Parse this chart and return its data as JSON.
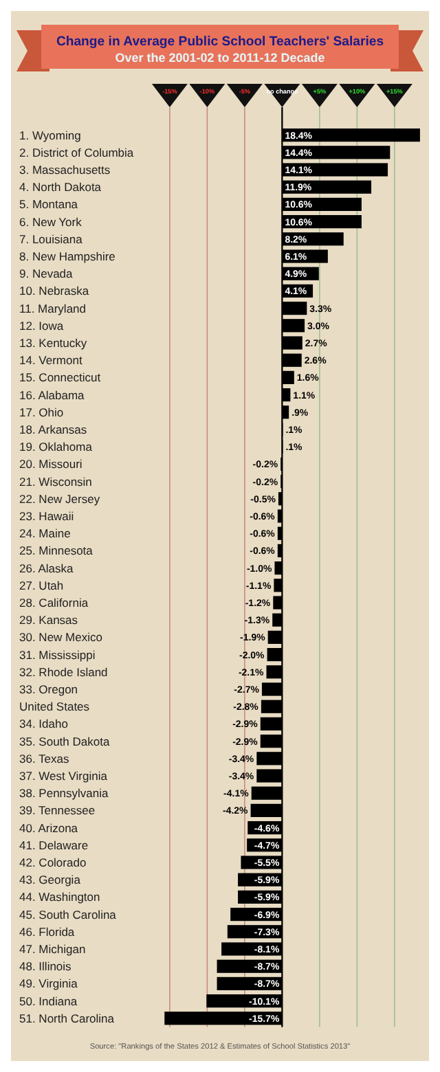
{
  "chart_data": {
    "type": "bar",
    "orientation": "horizontal",
    "title": "Change in Average Public School Teachers' Salaries",
    "subtitle": "Over the 2001-02 to 2011-12 Decade",
    "categories": [
      "1. Wyoming",
      "2. District of Columbia",
      "3. Massachusetts",
      "4. North Dakota",
      "5. Montana",
      "6. New York",
      "7. Louisiana",
      "8. New Hampshire",
      "9. Nevada",
      "10. Nebraska",
      "11. Maryland",
      "12. Iowa",
      "13. Kentucky",
      "14. Vermont",
      "15. Connecticut",
      "16. Alabama",
      "17. Ohio",
      "18. Arkansas",
      "19. Oklahoma",
      "20. Missouri",
      "21. Wisconsin",
      "22. New Jersey",
      "23. Hawaii",
      "24. Maine",
      "25. Minnesota",
      "26. Alaska",
      "27. Utah",
      "28. California",
      "29. Kansas",
      "30. New Mexico",
      "31. Mississippi",
      "32. Rhode Island",
      "33. Oregon",
      "United States",
      "34. Idaho",
      "35. South Dakota",
      "36. Texas",
      "37. West Virginia",
      "38. Pennsylvania",
      "39. Tennessee",
      "40. Arizona",
      "41. Delaware",
      "42. Colorado",
      "43. Georgia",
      "44. Washington",
      "45. South Carolina",
      "46. Florida",
      "47. Michigan",
      "48. Illinois",
      "49. Virginia",
      "50. Indiana",
      "51. North Carolina"
    ],
    "values": [
      18.4,
      14.4,
      14.1,
      11.9,
      10.6,
      10.6,
      8.2,
      6.1,
      4.9,
      4.1,
      3.3,
      3.0,
      2.7,
      2.6,
      1.6,
      1.1,
      0.9,
      0.1,
      0.1,
      -0.2,
      -0.2,
      -0.5,
      -0.6,
      -0.6,
      -0.6,
      -1.0,
      -1.1,
      -1.2,
      -1.3,
      -1.9,
      -2.0,
      -2.1,
      -2.7,
      -2.8,
      -2.9,
      -2.9,
      -3.4,
      -3.4,
      -4.1,
      -4.2,
      -4.6,
      -4.7,
      -5.5,
      -5.9,
      -5.9,
      -6.9,
      -7.3,
      -8.1,
      -8.7,
      -8.7,
      -10.1,
      -15.7
    ],
    "value_labels": [
      "18.4%",
      "14.4%",
      "14.1%",
      "11.9%",
      "10.6%",
      "10.6%",
      "8.2%",
      "6.1%",
      "4.9%",
      "4.1%",
      "3.3%",
      "3.0%",
      "2.7%",
      "2.6%",
      "1.6%",
      "1.1%",
      ".9%",
      ".1%",
      ".1%",
      "-0.2%",
      "-0.2%",
      "-0.5%",
      "-0.6%",
      "-0.6%",
      "-0.6%",
      "-1.0%",
      "-1.1%",
      "-1.2%",
      "-1.3%",
      "-1.9%",
      "-2.0%",
      "-2.1%",
      "-2.7%",
      "-2.8%",
      "-2.9%",
      "-2.9%",
      "-3.4%",
      "-3.4%",
      "-4.1%",
      "-4.2%",
      "-4.6%",
      "-4.7%",
      "-5.5%",
      "-5.9%",
      "-5.9%",
      "-6.9%",
      "-7.3%",
      "-8.1%",
      "-8.7%",
      "-8.7%",
      "-10.1%",
      "-15.7%"
    ],
    "color": "#000000",
    "xlim": [
      -16,
      18.5
    ],
    "xticks": [
      {
        "value": -15,
        "label": "-15%"
      },
      {
        "value": -10,
        "label": "-10%"
      },
      {
        "value": -5,
        "label": "-5%"
      },
      {
        "value": 0,
        "label": "no change"
      },
      {
        "value": 5,
        "label": "+5%"
      },
      {
        "value": 10,
        "label": "+10%"
      },
      {
        "value": 15,
        "label": "+15%"
      }
    ],
    "grid": "x",
    "annotations": [
      "Source: \"Rankings of the States 2012 & Estimates of School Statistics 2013\""
    ]
  }
}
